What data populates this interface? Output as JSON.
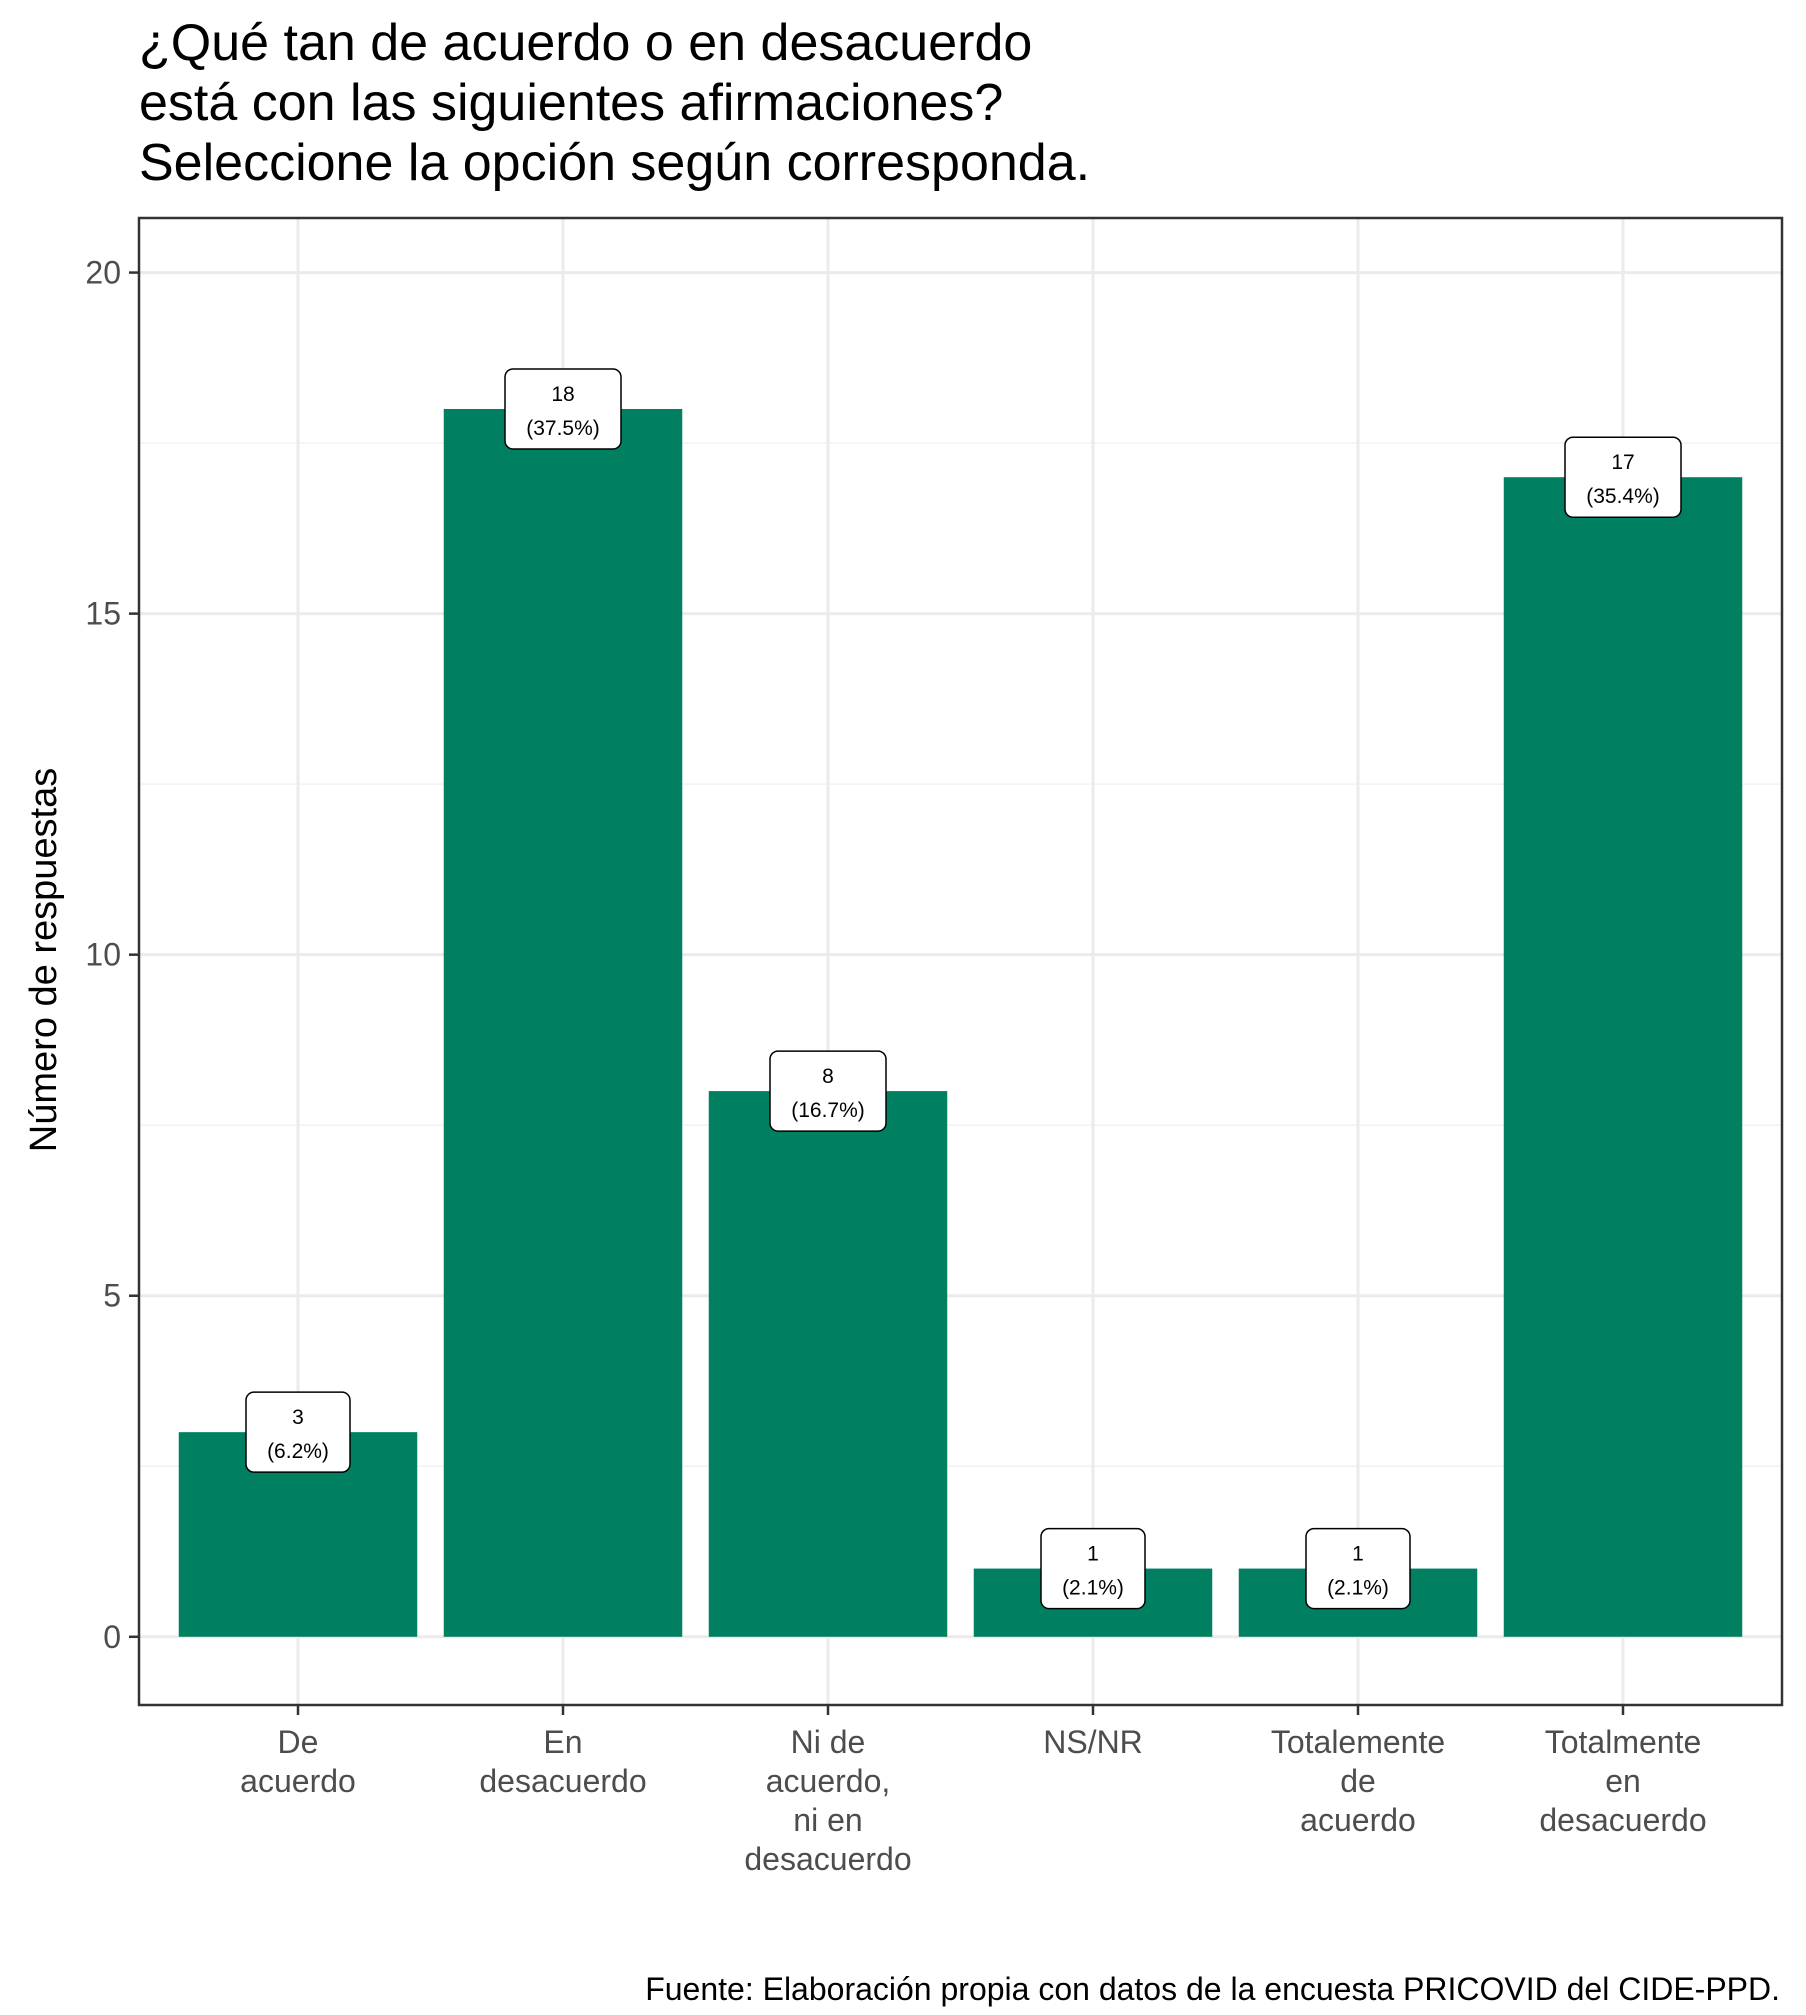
{
  "chart_data": {
    "type": "bar",
    "title": [
      "¿Qué tan de acuerdo o en desacuerdo",
      "está con las siguientes afirmaciones?",
      "Seleccione la opción según corresponda."
    ],
    "ylabel": "Número de respuestas",
    "xlabel": "",
    "caption": "Fuente: Elaboración propia con datos de la encuesta PRICOVID del CIDE-PPD.",
    "categories": [
      [
        "De",
        "acuerdo"
      ],
      [
        "En",
        "desacuerdo"
      ],
      [
        "Ni de",
        "acuerdo,",
        "ni en",
        "desacuerdo"
      ],
      [
        "NS/NR"
      ],
      [
        "Totalemente",
        "de",
        "acuerdo"
      ],
      [
        "Totalmente",
        "en",
        "desacuerdo"
      ]
    ],
    "values": [
      3,
      18,
      8,
      1,
      1,
      17
    ],
    "data_labels": [
      [
        "3",
        "(6.2%)"
      ],
      [
        "18",
        "(37.5%)"
      ],
      [
        "8",
        "(16.7%)"
      ],
      [
        "1",
        "(2.1%)"
      ],
      [
        "1",
        "(2.1%)"
      ],
      [
        "17",
        "(35.4%)"
      ]
    ],
    "ylim": [
      -1,
      20.8
    ],
    "yticks": [
      0,
      5,
      10,
      15,
      20
    ],
    "bar_color": "#008060",
    "grid": true,
    "legend": "none"
  }
}
